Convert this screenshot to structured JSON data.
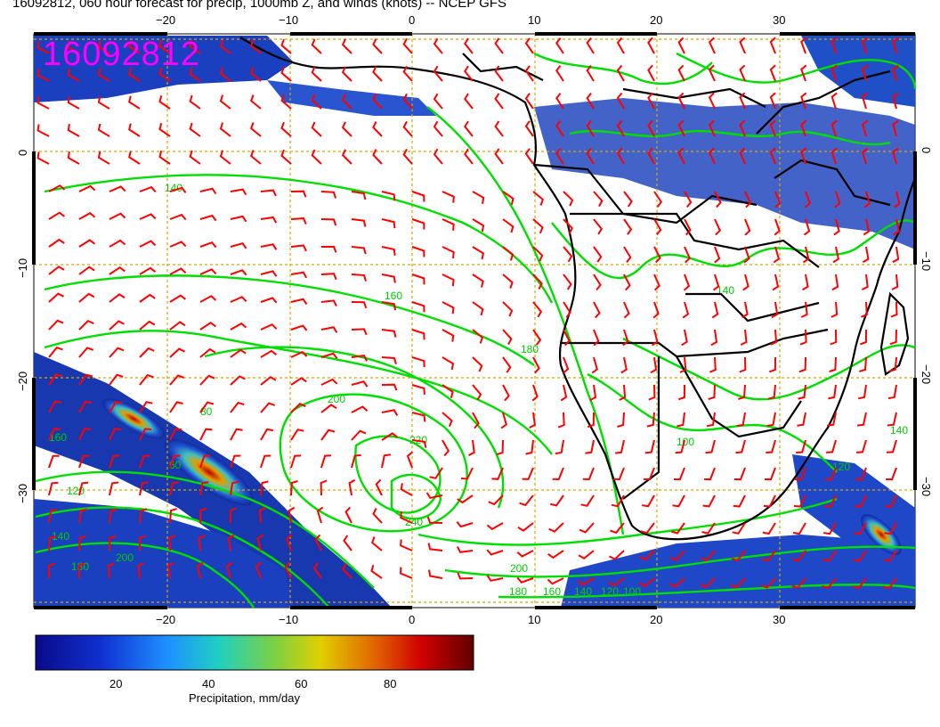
{
  "title": "16092812, 060 hour forecast for precip, 1000mb Z, and winds (knots) -- NCEP GFS",
  "stamp": "16092812",
  "axes": {
    "lon_ticks": [
      "−20",
      "−10",
      "0",
      "10",
      "20",
      "30"
    ],
    "lat_ticks": [
      "0",
      "−10",
      "−20",
      "−30"
    ],
    "lon_range": [
      -30.5,
      40.5
    ],
    "lat_range": [
      -39.5,
      9.5
    ]
  },
  "contours": {
    "color": "#00dd00",
    "labels": [
      "140",
      "160",
      "180",
      "200",
      "220",
      "240",
      "200",
      "180",
      "160",
      "140",
      "120",
      "100",
      "80",
      "60",
      "120",
      "140",
      "160",
      "180",
      "200",
      "140",
      "120",
      "100",
      "140"
    ]
  },
  "colorbar": {
    "label": "Precipitation, mm/day",
    "ticks": [
      "20",
      "40",
      "60",
      "80"
    ],
    "range": [
      0,
      100
    ]
  },
  "colors": {
    "wind_barbs": "#ff0000",
    "contours": "#00dd00",
    "coast": "#000000",
    "grid": "#d4a800",
    "stamp": "#ff00ff"
  }
}
